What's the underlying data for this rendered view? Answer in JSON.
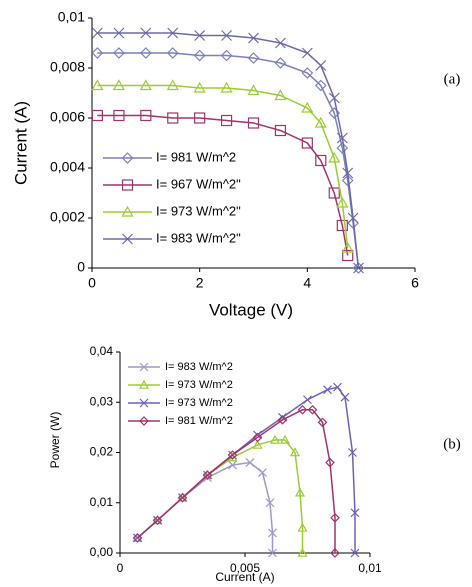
{
  "chart_data": [
    {
      "type": "line",
      "label": "(a)",
      "xlabel": "Voltage (V)",
      "ylabel": "Current (A)",
      "x": [
        0.1,
        0.5,
        1,
        1.5,
        2,
        2.5,
        3,
        3.5,
        4,
        4.25,
        4.5,
        4.65,
        4.75,
        4.85,
        4.95
      ],
      "xlim": [
        0,
        6
      ],
      "xticks": [
        0,
        2,
        4,
        6
      ],
      "ylim": [
        0,
        0.01
      ],
      "yticks": [
        0,
        {
          "value": 0.002,
          "label": "0,002"
        },
        {
          "value": 0.004,
          "label": "0,004"
        },
        {
          "value": 0.006,
          "label": "0,006"
        },
        {
          "value": 0.008,
          "label": "0,008"
        },
        {
          "value": 0.01,
          "label": "0,01"
        }
      ],
      "series": [
        {
          "name": "I= 981 W/m^2",
          "color": "#7b7fbd",
          "marker": "diamond",
          "values": [
            0.0086,
            0.0086,
            0.0086,
            0.0086,
            0.0085,
            0.0085,
            0.0084,
            0.0082,
            0.0078,
            0.0073,
            0.0062,
            0.0048,
            0.0035,
            0.0018,
            0
          ]
        },
        {
          "name": "I= 967 W/m^2\"",
          "color": "#a3336b",
          "marker": "square",
          "values": [
            0.0061,
            0.0061,
            0.0061,
            0.006,
            0.006,
            0.0059,
            0.0058,
            0.0055,
            0.005,
            0.0043,
            0.003,
            0.0017,
            0.0005,
            null,
            null
          ]
        },
        {
          "name": "I= 973 W/m^2\"",
          "color": "#9acd32",
          "marker": "triangle",
          "values": [
            0.0073,
            0.0073,
            0.0073,
            0.0073,
            0.0072,
            0.0072,
            0.0071,
            0.0069,
            0.0064,
            0.0058,
            0.0044,
            0.0026,
            0.0008,
            null,
            null
          ]
        },
        {
          "name": "I= 983 W/m^2\"",
          "color": "#6b6aa8",
          "marker": "x",
          "values": [
            0.0094,
            0.0094,
            0.0094,
            0.0094,
            0.0093,
            0.0093,
            0.0092,
            0.009,
            0.0086,
            0.0081,
            0.0068,
            0.0052,
            0.0038,
            0.002,
            0
          ]
        }
      ]
    },
    {
      "type": "line",
      "label": "(b)",
      "xlabel": "Current (A)",
      "ylabel": "Power (W)",
      "xlim": [
        0,
        0.01
      ],
      "xticks": [
        0,
        {
          "value": 0.005,
          "label": "0,005"
        },
        {
          "value": 0.01,
          "label": "0,01"
        }
      ],
      "ylim": [
        0,
        0.04
      ],
      "yticks": [
        {
          "value": 0,
          "label": "0,00"
        },
        {
          "value": 0.01,
          "label": "0,01"
        },
        {
          "value": 0.02,
          "label": "0,02"
        },
        {
          "value": 0.03,
          "label": "0,03"
        },
        {
          "value": 0.04,
          "label": "0,04"
        }
      ],
      "series": [
        {
          "name": "I= 983 W/m^2",
          "color": "#9a9acc",
          "marker": "x",
          "x": [
            0.0007,
            0.0015,
            0.0025,
            0.0035,
            0.0045,
            0.0052,
            0.0057,
            0.006,
            0.0061,
            0.0061
          ],
          "values": [
            0.003,
            0.0065,
            0.011,
            0.015,
            0.0175,
            0.018,
            0.016,
            0.01,
            0.004,
            0
          ]
        },
        {
          "name": "I= 973 W/m^2",
          "color": "#9acd32",
          "marker": "triangle",
          "x": [
            0.0007,
            0.0015,
            0.0025,
            0.0035,
            0.0045,
            0.0055,
            0.0062,
            0.0066,
            0.007,
            0.0072,
            0.0073,
            0.0073
          ],
          "values": [
            0.003,
            0.0065,
            0.011,
            0.0155,
            0.019,
            0.0215,
            0.0225,
            0.0225,
            0.02,
            0.012,
            0.005,
            0
          ]
        },
        {
          "name": "I= 973 W/m^2",
          "color": "#6b62b8",
          "marker": "x",
          "x": [
            0.0007,
            0.0015,
            0.0025,
            0.0035,
            0.0045,
            0.0055,
            0.0065,
            0.0075,
            0.0083,
            0.0087,
            0.009,
            0.0093,
            0.0094,
            0.0094
          ],
          "values": [
            0.003,
            0.0065,
            0.011,
            0.0155,
            0.0195,
            0.0235,
            0.027,
            0.0305,
            0.0325,
            0.033,
            0.031,
            0.02,
            0.008,
            0
          ]
        },
        {
          "name": "I= 981 W/m^2",
          "color": "#a3336b",
          "marker": "diamond",
          "x": [
            0.0007,
            0.0015,
            0.0025,
            0.0035,
            0.0045,
            0.0055,
            0.0065,
            0.0073,
            0.0077,
            0.0081,
            0.0084,
            0.0086,
            0.0086
          ],
          "values": [
            0.003,
            0.0065,
            0.011,
            0.0155,
            0.0195,
            0.023,
            0.0265,
            0.0285,
            0.0285,
            0.026,
            0.018,
            0.007,
            0
          ]
        }
      ]
    }
  ]
}
